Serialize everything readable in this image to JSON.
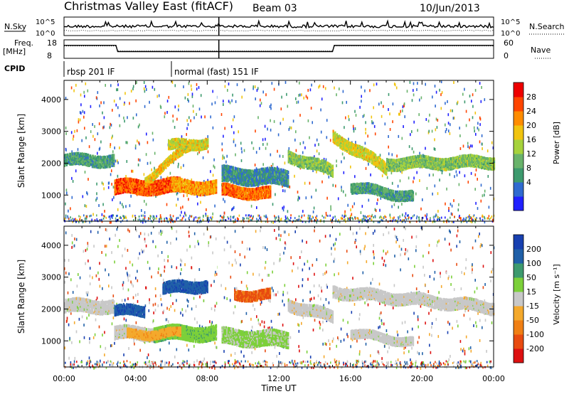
{
  "header": {
    "title": "Christmas Valley East (fitACF)",
    "beam": "Beam 03",
    "date": "10/Jun/2013"
  },
  "strips": {
    "nsky_label": "N.Sky",
    "nsearch_label": "N.Search",
    "freq_label_1": "Freq.",
    "freq_label_2": "[MHz]",
    "nave_label": "Nave",
    "cpid_label": "CPID",
    "left_ticks_top": [
      "10^5",
      "10^0"
    ],
    "right_ticks_top": [
      "10^5",
      "10^0"
    ],
    "left_ticks_freq": [
      "18",
      "8"
    ],
    "right_ticks_nave": [
      "60",
      "0"
    ]
  },
  "cpid": [
    {
      "label": "rbsp 201 IF",
      "start_hour": 0,
      "end_hour": 6
    },
    {
      "label": "normal (fast) 151 IF",
      "start_hour": 6,
      "end_hour": 24
    }
  ],
  "freq_nave": {
    "x_hours": [
      0,
      2.9,
      3.0,
      8.6,
      8.7,
      15.0,
      15.1,
      24
    ],
    "freq_mhz": [
      15.5,
      15.5,
      10.5,
      10.5,
      10.5,
      10.5,
      15.5,
      15.5
    ],
    "nave": [
      40,
      40,
      24,
      24,
      24,
      24,
      40,
      40
    ]
  },
  "colorbars": {
    "power": {
      "label": "Power [dB]",
      "ticks": [
        "28",
        "24",
        "20",
        "16",
        "12",
        "8",
        "4"
      ],
      "colors": [
        "#2020ff",
        "#2f6ad0",
        "#3d9a6e",
        "#69b36b",
        "#a6d23c",
        "#f1c40f",
        "#ff8c00",
        "#ff4500",
        "#ee0000"
      ]
    },
    "velocity": {
      "label": "Velocity [m s⁻¹]",
      "ticks": [
        "200",
        "100",
        "50",
        "15",
        "-15",
        "-50",
        "-100",
        "-200"
      ],
      "colors": [
        "#1840b0",
        "#2060a8",
        "#3d9a6e",
        "#7cd03a",
        "#c8c8c8",
        "#f4a92c",
        "#f07f14",
        "#e84b10",
        "#dd1010"
      ]
    }
  },
  "chart_data": [
    {
      "type": "heatmap",
      "name": "power",
      "title": "",
      "xlabel": "",
      "ylabel": "Slant Range [km]",
      "x_ticks": [
        "00:00",
        "04:00",
        "08:00",
        "12:00",
        "16:00",
        "20:00",
        "00:00"
      ],
      "y_ticks": [
        1000,
        2000,
        3000,
        4000
      ],
      "xlim_hours": [
        0,
        24
      ],
      "ylim_km": [
        180,
        4600
      ],
      "colorbar_label": "Power [dB]",
      "colorbar_range_db": [
        0,
        32
      ],
      "features": [
        {
          "t0": 0.0,
          "t1": 2.8,
          "r_center_start": 2150,
          "r_center_end": 2150,
          "thickness": 350,
          "value": 10
        },
        {
          "t0": 2.8,
          "t1": 6.5,
          "r_center_start": 1300,
          "r_center_end": 1350,
          "thickness": 450,
          "value": 26
        },
        {
          "t0": 4.5,
          "t1": 7.2,
          "r_center_start": 1500,
          "r_center_end": 2700,
          "thickness": 250,
          "value": 20
        },
        {
          "t0": 6.0,
          "t1": 8.5,
          "r_center_start": 1350,
          "r_center_end": 1300,
          "thickness": 400,
          "value": 22
        },
        {
          "t0": 5.8,
          "t1": 8.0,
          "r_center_start": 2600,
          "r_center_end": 2700,
          "thickness": 300,
          "value": 18
        },
        {
          "t0": 8.8,
          "t1": 11.5,
          "r_center_start": 1200,
          "r_center_end": 1100,
          "thickness": 350,
          "value": 25
        },
        {
          "t0": 8.8,
          "t1": 12.5,
          "r_center_start": 1700,
          "r_center_end": 1600,
          "thickness": 500,
          "value": 8
        },
        {
          "t0": 12.5,
          "t1": 15.0,
          "r_center_start": 2300,
          "r_center_end": 1800,
          "thickness": 350,
          "value": 14
        },
        {
          "t0": 15.0,
          "t1": 18.0,
          "r_center_start": 2900,
          "r_center_end": 1900,
          "thickness": 350,
          "value": 18
        },
        {
          "t0": 16.0,
          "t1": 19.5,
          "r_center_start": 1300,
          "r_center_end": 1000,
          "thickness": 300,
          "value": 10
        },
        {
          "t0": 18.0,
          "t1": 24.0,
          "r_center_start": 2050,
          "r_center_end": 2100,
          "thickness": 350,
          "value": 14
        }
      ]
    },
    {
      "type": "heatmap",
      "name": "velocity",
      "title": "",
      "xlabel": "Time UT",
      "ylabel": "Slant Range [km]",
      "x_ticks": [
        "00:00",
        "04:00",
        "08:00",
        "12:00",
        "16:00",
        "20:00",
        "00:00"
      ],
      "y_ticks": [
        1000,
        2000,
        3000,
        4000
      ],
      "xlim_hours": [
        0,
        24
      ],
      "ylim_km": [
        180,
        4600
      ],
      "colorbar_label": "Velocity [m s⁻¹]",
      "colorbar_range_ms": [
        -250,
        250
      ],
      "features": [
        {
          "t0": 0.0,
          "t1": 2.8,
          "r_center_start": 2150,
          "r_center_end": 2150,
          "thickness": 400,
          "value": 0
        },
        {
          "t0": 2.8,
          "t1": 4.5,
          "r_center_start": 2000,
          "r_center_end": 2000,
          "thickness": 300,
          "value": 180
        },
        {
          "t0": 2.8,
          "t1": 5.0,
          "r_center_start": 1300,
          "r_center_end": 1300,
          "thickness": 400,
          "value": 0
        },
        {
          "t0": 5.0,
          "t1": 8.5,
          "r_center_start": 1300,
          "r_center_end": 1300,
          "thickness": 450,
          "value": 60
        },
        {
          "t0": 5.5,
          "t1": 8.0,
          "r_center_start": 2700,
          "r_center_end": 2800,
          "thickness": 350,
          "value": 180
        },
        {
          "t0": 3.5,
          "t1": 6.5,
          "r_center_start": 1250,
          "r_center_end": 1300,
          "thickness": 250,
          "value": -60
        },
        {
          "t0": 8.8,
          "t1": 12.5,
          "r_center_start": 1200,
          "r_center_end": 1100,
          "thickness": 500,
          "value": 40
        },
        {
          "t0": 9.5,
          "t1": 11.5,
          "r_center_start": 2500,
          "r_center_end": 2500,
          "thickness": 300,
          "value": -150
        },
        {
          "t0": 12.5,
          "t1": 15.0,
          "r_center_start": 2200,
          "r_center_end": 1800,
          "thickness": 350,
          "value": 0
        },
        {
          "t0": 15.0,
          "t1": 24.0,
          "r_center_start": 2600,
          "r_center_end": 2100,
          "thickness": 350,
          "value": 0
        },
        {
          "t0": 16.0,
          "t1": 19.5,
          "r_center_start": 1300,
          "r_center_end": 1000,
          "thickness": 250,
          "value": 0
        }
      ]
    }
  ]
}
